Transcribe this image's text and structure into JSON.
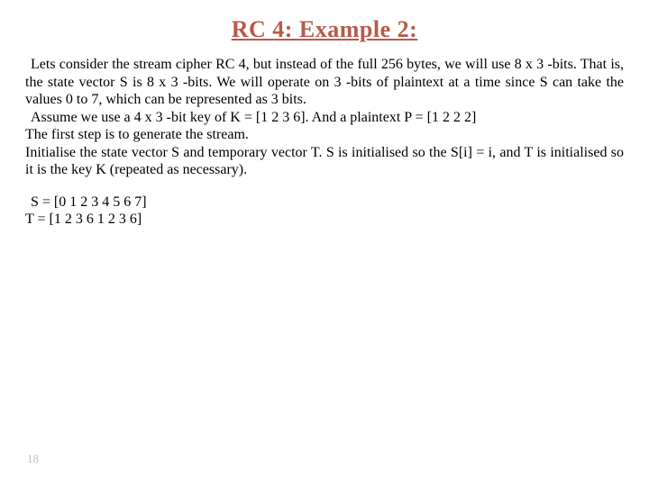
{
  "title": {
    "text": "RC 4: Example 2:",
    "color": "#b85a4a",
    "fontsize": 26
  },
  "body": {
    "fontsize": 16,
    "p1": "Lets consider the stream cipher RC 4, but instead of the full 256 bytes, we will use 8 x 3 -bits. That is, the state vector S is 8 x 3 -bits. We will operate on 3 -bits of plaintext at a time since S can take the values 0 to 7, which can be represented as 3 bits.",
    "p2": "Assume we use a 4 x 3 -bit key of K = [1 2 3 6]. And a plaintext P = [1 2 2 2]",
    "p3": "The first step is to generate the stream.",
    "p4": "Initialise the state vector S and temporary vector T. S is initialised so the S[i] = i, and T is initialised so it is the key K (repeated as necessary)."
  },
  "arrays": {
    "fontsize": 16,
    "s": "S = [0 1 2 3 4 5 6 7]",
    "t": "T = [1 2 3 6 1 2 3 6]"
  },
  "page_number": {
    "value": "18",
    "fontsize": 13,
    "color": "#bfbfbf"
  }
}
